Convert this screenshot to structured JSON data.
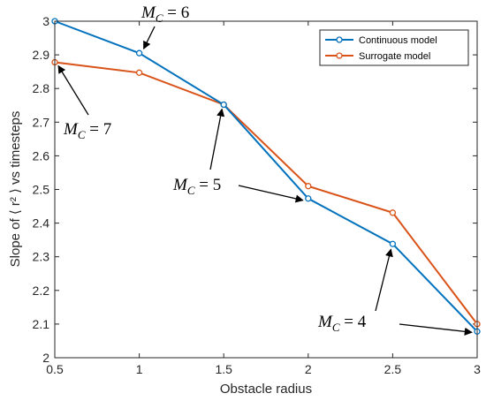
{
  "chart_data": {
    "type": "line",
    "xlabel": "Obstacle radius",
    "ylabel": "Slope of ⟨ r² ⟩ vs timesteps",
    "xlim": [
      0.5,
      3
    ],
    "ylim": [
      2,
      3
    ],
    "xticks": [
      "0.5",
      "1",
      "1.5",
      "2",
      "2.5",
      "3"
    ],
    "yticks": [
      "2",
      "2.1",
      "2.2",
      "2.3",
      "2.4",
      "2.5",
      "2.6",
      "2.7",
      "2.8",
      "2.9",
      "3"
    ],
    "grid": false,
    "legend_position": "top-right",
    "x": [
      0.5,
      1,
      1.5,
      2,
      2.5,
      3
    ],
    "series": [
      {
        "name": "Continuous model",
        "color": "#0072BD",
        "values": [
          3.0,
          2.905,
          2.752,
          2.473,
          2.338,
          2.078
        ]
      },
      {
        "name": "Surrogate model",
        "color": "#D95319",
        "values": [
          2.878,
          2.847,
          2.752,
          2.51,
          2.431,
          2.1
        ]
      }
    ],
    "annotations": [
      {
        "main": "M",
        "sub": "C",
        "rest": " = 6",
        "x": 1.0,
        "y": 2.905
      },
      {
        "main": "M",
        "sub": "C",
        "rest": " = 7",
        "x": 0.5,
        "y": 2.878
      },
      {
        "main": "M",
        "sub": "C",
        "rest": " = 5",
        "x": 1.5,
        "y": 2.752
      },
      {
        "main": "M",
        "sub": "C",
        "rest": " = 5",
        "x": 2.0,
        "y": 2.473
      },
      {
        "main": "M",
        "sub": "C",
        "rest": " = 4",
        "x": 2.5,
        "y": 2.338
      },
      {
        "main": "M",
        "sub": "C",
        "rest": " = 4",
        "x": 3.0,
        "y": 2.078
      }
    ]
  }
}
